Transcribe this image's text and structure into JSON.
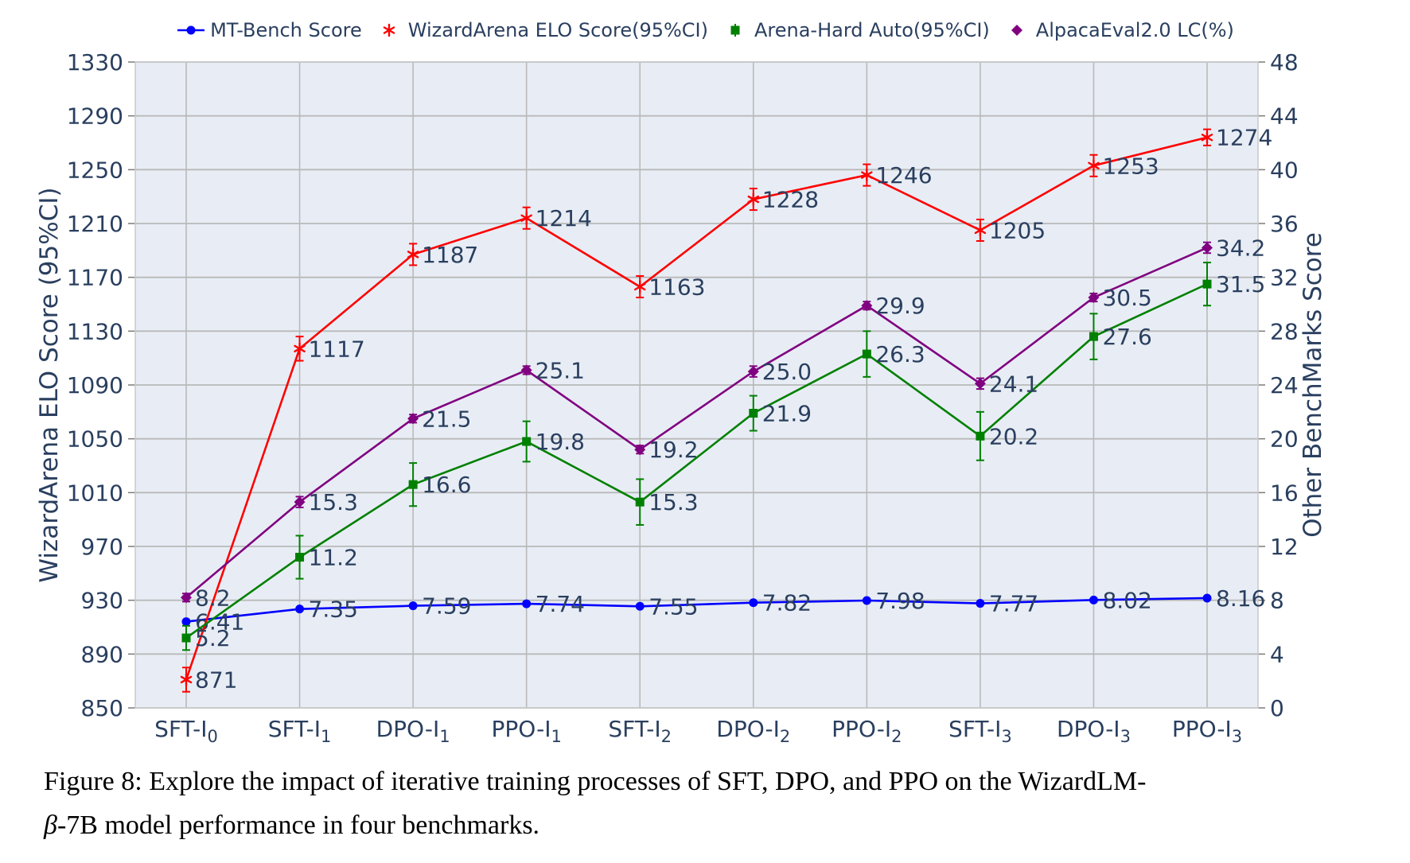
{
  "figure": {
    "caption": {
      "line1": "Figure 8: Explore the impact of iterative training processes of SFT, DPO, and PPO on the WizardLM-",
      "line2_beta": "β",
      "line2_rest": "-7B model performance in four benchmarks."
    }
  },
  "chart_data": {
    "type": "line",
    "categories": [
      "SFT-I₀",
      "SFT-I₁",
      "DPO-I₁",
      "PPO-I₁",
      "SFT-I₂",
      "DPO-I₂",
      "PPO-I₂",
      "SFT-I₃",
      "DPO-I₃",
      "PPO-I₃"
    ],
    "series": [
      {
        "name": "MT-Bench Score",
        "color": "#0000ff",
        "marker": "circle",
        "axis": "right",
        "values": [
          6.41,
          7.35,
          7.59,
          7.74,
          7.55,
          7.82,
          7.98,
          7.77,
          8.02,
          8.16
        ],
        "labels": [
          "6.41",
          "7.35",
          "7.59",
          "7.74",
          "7.55",
          "7.82",
          "7.98",
          "7.77",
          "8.02",
          "8.16"
        ]
      },
      {
        "name": "WizardArena ELO Score(95%CI)",
        "color": "#ff0000",
        "marker": "asterisk",
        "axis": "left",
        "values": [
          871,
          1117,
          1187,
          1214,
          1163,
          1228,
          1246,
          1205,
          1253,
          1274
        ],
        "labels": [
          "871",
          "1117",
          "1187",
          "1214",
          "1163",
          "1228",
          "1246",
          "1205",
          "1253",
          "1274"
        ],
        "ci": [
          9,
          9,
          8,
          8,
          8,
          8,
          8,
          8,
          8,
          6
        ]
      },
      {
        "name": "Arena-Hard Auto(95%CI)",
        "color": "#008000",
        "marker": "square",
        "axis": "right",
        "values": [
          5.2,
          11.2,
          16.6,
          19.8,
          15.3,
          21.9,
          26.3,
          20.2,
          27.6,
          31.5
        ],
        "labels": [
          "5.2",
          "11.2",
          "16.6",
          "19.8",
          "15.3",
          "21.9",
          "26.3",
          "20.2",
          "27.6",
          "31.5"
        ],
        "ci": [
          0.9,
          1.6,
          1.6,
          1.5,
          1.7,
          1.3,
          1.7,
          1.8,
          1.7,
          1.6
        ]
      },
      {
        "name": "AlpacaEval2.0 LC(%)",
        "color": "#800080",
        "marker": "diamond",
        "axis": "right",
        "values": [
          8.2,
          15.3,
          21.5,
          25.1,
          19.2,
          25.0,
          29.9,
          24.1,
          30.5,
          34.2
        ],
        "labels": [
          "8.2",
          "15.3",
          "21.5",
          "25.1",
          "19.2",
          "25.0",
          "29.9",
          "24.1",
          "30.5",
          "34.2"
        ],
        "ci": [
          0.3,
          0.4,
          0.3,
          0.3,
          0.3,
          0.4,
          0.3,
          0.4,
          0.3,
          0.4
        ]
      }
    ],
    "left_axis": {
      "label": "WizardArena ELO Score (95%CI)",
      "min": 850,
      "max": 1330,
      "tick_step": 40,
      "ticks": [
        850,
        890,
        930,
        970,
        1010,
        1050,
        1090,
        1130,
        1170,
        1210,
        1250,
        1290,
        1330
      ]
    },
    "right_axis": {
      "label": "Other BenchMarks Score",
      "min": 0,
      "max": 48,
      "tick_step": 4,
      "ticks": [
        0,
        4,
        8,
        12,
        16,
        20,
        24,
        28,
        32,
        36,
        40,
        44,
        48
      ]
    },
    "grid": true,
    "legend_position": "top",
    "colors": {
      "plot_bg": "#e8edf5",
      "grid": "#b9b9b9",
      "text": "#2a3f5f",
      "caption": "#000000"
    }
  }
}
